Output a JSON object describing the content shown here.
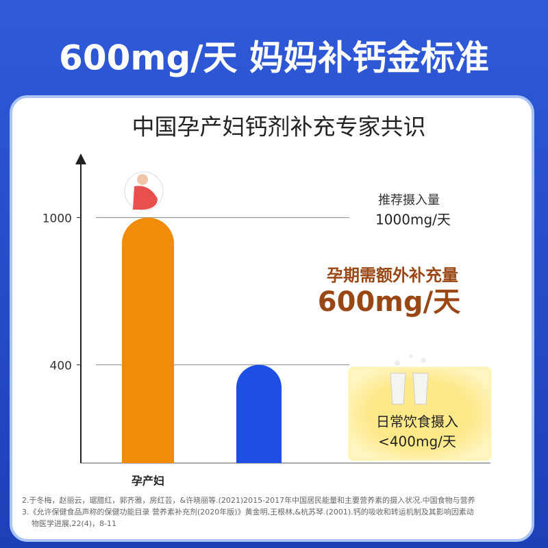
{
  "header": {
    "title": "600mg/天  妈妈补钙金标准"
  },
  "chart_data": {
    "type": "bar",
    "title": "中国孕产妇钙剂补充专家共识",
    "categories": [
      "孕产妇",
      null
    ],
    "values": [
      1000,
      400
    ],
    "colors": [
      "#f08c0a",
      "#1d4fe6"
    ],
    "ylim": [
      0,
      1250
    ],
    "yticks": [
      400,
      1000
    ],
    "grid": true,
    "annotations": [
      "推荐摄入量",
      "1000mg/天",
      "孕期需额外补充量",
      "600mg/天",
      "日常饮食摄入",
      "<400mg/天"
    ]
  },
  "footnotes": [
    "2.于冬梅，赵丽云，琚腊红，郭齐雅，房红芸，&许晓丽等.(2021)2015-2017年中国居民能量和主要营养素的摄入状况.中国食物与营养",
    "3.《允许保健食品声称的保健功能目录 营养素补充剂(2020年版)》黄金明,王根林,&杭苏琴.(2001).钙的吸收和转运机制及其影响因素动",
    "物医学进展,22(4)，8-11"
  ]
}
